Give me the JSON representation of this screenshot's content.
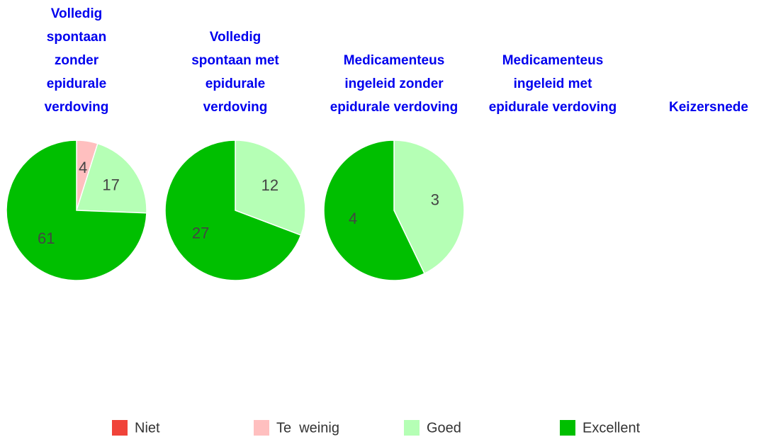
{
  "chart_data": [
    {
      "type": "pie",
      "title": "Volledig spontaan zonder epidurale verdoving",
      "values": [
        null,
        4,
        17,
        61
      ]
    },
    {
      "type": "pie",
      "title": "Volledig spontaan met epidurale verdoving",
      "values": [
        null,
        null,
        12,
        27
      ]
    },
    {
      "type": "pie",
      "title": "Medicamenteus ingeleid zonder epidurale verdoving",
      "values": [
        null,
        null,
        3,
        4
      ]
    },
    {
      "type": "pie",
      "title": "Medicamenteus ingeleid met epidurale verdoving",
      "values": [
        null,
        null,
        null,
        null
      ]
    },
    {
      "type": "pie",
      "title": "Keizersnede",
      "values": [
        null,
        null,
        null,
        null
      ]
    }
  ],
  "legend": {
    "categories": [
      "Niet",
      "Te  weinig",
      "Goed",
      "Excellent"
    ],
    "colors": [
      "#f0433a",
      "#ffbfbf",
      "#b5ffb5",
      "#00bf00"
    ]
  }
}
